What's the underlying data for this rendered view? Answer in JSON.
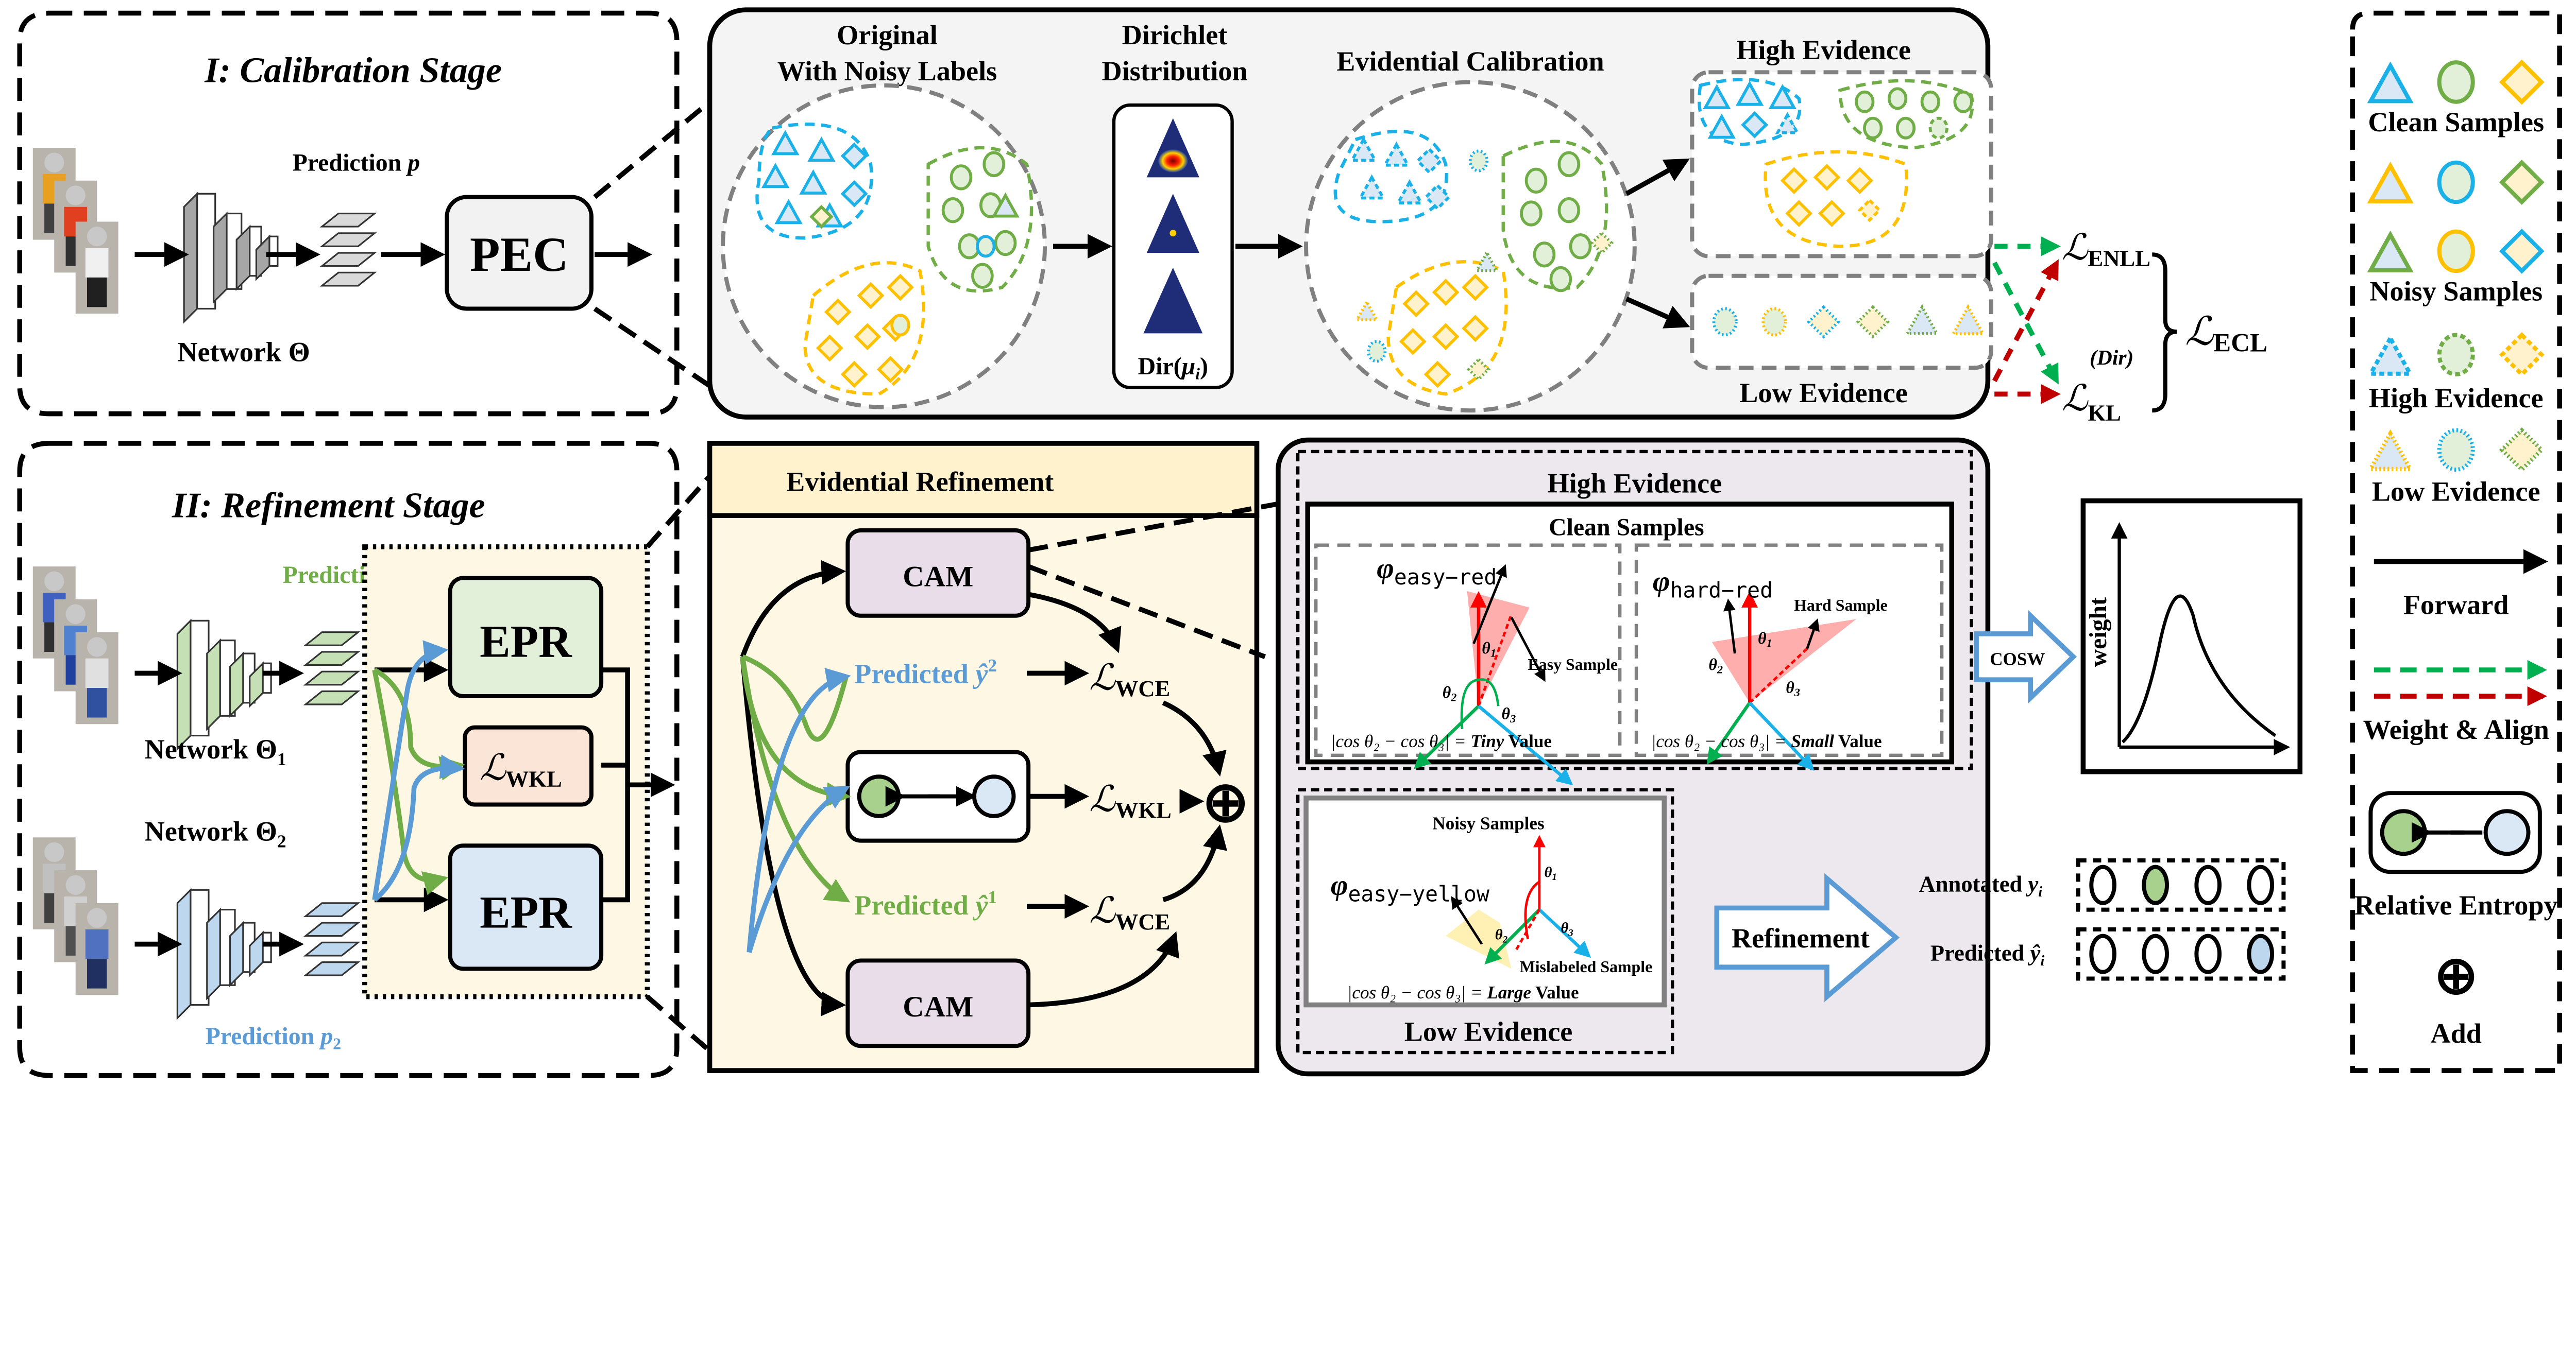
{
  "colors": {
    "blue": "#1ab0e8",
    "green": "#70ad47",
    "yellow": "#ffc000",
    "blue_fill": "#dae8f5",
    "green_fill": "#e2efd9",
    "yellow_fill": "#fff2cc",
    "red_arrow": "#c00000",
    "green_arrow": "#00b050",
    "panel_grey": "#f4f4f4",
    "refine_bg": "#fdf7e4",
    "purple_bg": "#ede8ee"
  },
  "stage1": {
    "title": "I: Calibration Stage",
    "prediction": "Prediction",
    "prediction_var": "p",
    "network": "Network",
    "network_var": "Θ",
    "pec": "PEC"
  },
  "calibration": {
    "original_1": "Original",
    "original_2": "With Noisy Labels",
    "dirichlet_1": "Dirichlet",
    "dirichlet_2": "Distribution",
    "dir_label": "Dir(",
    "dir_mu": "μ",
    "dir_sub": "i",
    "dir_close": ")",
    "evidential": "Evidential Calibration",
    "high": "High Evidence",
    "low": "Low Evidence",
    "loss_symbol": "ℒ",
    "enll": "ENLL",
    "kl": "KL",
    "kl_sup": "(Dir)",
    "ecl": "ECL"
  },
  "legend": {
    "clean": "Clean Samples",
    "noisy": "Noisy Samples",
    "high": "High Evidence",
    "low": "Low Evidence",
    "forward": "Forward",
    "weight_align": "Weight & Align",
    "relative_entropy": "Relative Entropy",
    "add": "Add",
    "add_symbol": "⊕"
  },
  "stage2": {
    "title": "II: Refinement Stage",
    "prediction": "Prediction",
    "p": "p",
    "sub1": "1",
    "sub2": "2",
    "network": "Network",
    "theta": "Θ",
    "epr": "EPR",
    "loss_symbol": "ℒ",
    "wkl": "WKL"
  },
  "refinement": {
    "header": "Evidential Refinement",
    "cam": "CAM",
    "predicted": "Predicted",
    "yhat": "ŷ",
    "sup2": "2",
    "sup1": "1",
    "loss_symbol": "ℒ",
    "wce": "WCE",
    "wkl": "WKL",
    "add_symbol": "⊕"
  },
  "purple": {
    "high": "High Evidence",
    "clean": "Clean Samples",
    "phi": "φ",
    "easy_red": "easy−red",
    "hard_red": "hard−red",
    "easy_yellow": "easy−yellow",
    "easy_sample": "Easy Sample",
    "hard_sample": "Hard Sample",
    "mislabeled": "Mislabeled Sample",
    "theta": "θ",
    "t1": "1",
    "t2": "2",
    "t3": "3",
    "formula": "|cos θ₂ − cos θ₃| = ",
    "tiny": "Tiny",
    "small": "Small",
    "large": "Large",
    "value": " Value",
    "cosw": "COSW",
    "weight": "weight",
    "noisy": "Noisy Samples",
    "low": "Low Evidence",
    "refinement": "Refinement",
    "annotated": "Annotated",
    "y": "y",
    "yhat": "ŷ",
    "i": "i",
    "predicted": "Predicted"
  }
}
